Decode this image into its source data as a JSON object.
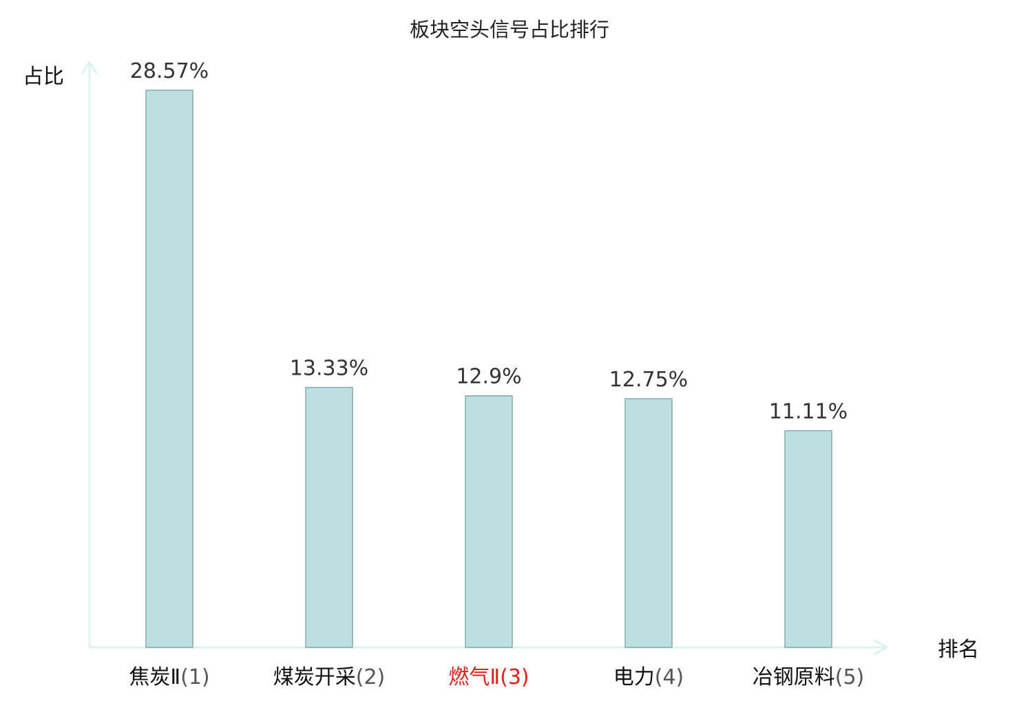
{
  "chart_data": {
    "type": "bar",
    "title": "板块空头信号占比排行",
    "ylabel": "占比",
    "xlabel": "排名",
    "ylim": [
      0,
      30
    ],
    "grid": false,
    "categories": [
      "焦炭Ⅱ(1)",
      "煤炭开采(2)",
      "燃气Ⅱ(3)",
      "电力(4)",
      "冶钢原料(5)"
    ],
    "category_parts": [
      {
        "name": "焦炭Ⅱ",
        "rank": "(1)"
      },
      {
        "name": "煤炭开采",
        "rank": "(2)"
      },
      {
        "name": "燃气Ⅱ",
        "rank": "(3)"
      },
      {
        "name": "电力",
        "rank": "(4)"
      },
      {
        "name": "冶钢原料",
        "rank": "(5)"
      }
    ],
    "values": [
      28.57,
      13.33,
      12.9,
      12.75,
      11.11
    ],
    "value_labels": [
      "28.57%",
      "13.33%",
      "12.9%",
      "12.75%",
      "11.11%"
    ],
    "highlight_index": 2,
    "colors": {
      "bar_fill": "#bce0e2",
      "bar_stroke": "#86a9aa",
      "axis": "#ddf1ef",
      "label": "#111111",
      "rank": "#555555",
      "highlight": "#e0201b",
      "value_text": "#333333"
    }
  }
}
